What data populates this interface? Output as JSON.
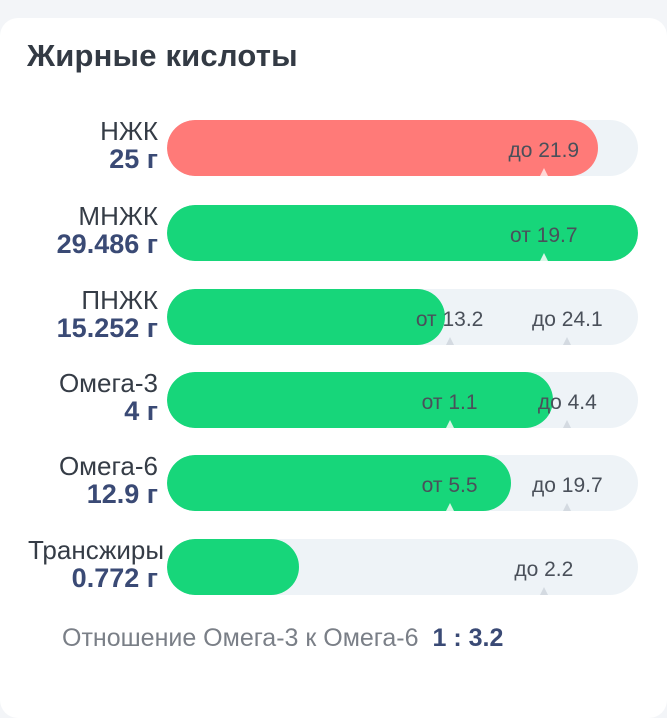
{
  "title": "Жирные кислоты",
  "rows": [
    {
      "name": "НЖК",
      "value": "25 г",
      "fill_fraction": 0.915,
      "fill_color": "#ff7a78",
      "markers": [
        {
          "label": "до 21.9",
          "at": 0.8
        }
      ]
    },
    {
      "name": "МНЖК",
      "value": "29.486 г",
      "fill_fraction": 1.0,
      "fill_color": "#17d67a",
      "markers": [
        {
          "label": "от 19.7",
          "at": 0.8
        }
      ]
    },
    {
      "name": "ПНЖК",
      "value": "15.252 г",
      "fill_fraction": 0.59,
      "fill_color": "#17d67a",
      "markers": [
        {
          "label": "от 13.2",
          "at": 0.6
        },
        {
          "label": "до 24.1",
          "at": 0.85
        }
      ]
    },
    {
      "name": "Омега-3",
      "value": "4 г",
      "fill_fraction": 0.82,
      "fill_color": "#17d67a",
      "markers": [
        {
          "label": "от 1.1",
          "at": 0.6
        },
        {
          "label": "до 4.4",
          "at": 0.85
        }
      ]
    },
    {
      "name": "Омега-6",
      "value": "12.9 г",
      "fill_fraction": 0.73,
      "fill_color": "#17d67a",
      "markers": [
        {
          "label": "от 5.5",
          "at": 0.6
        },
        {
          "label": "до 19.7",
          "at": 0.85
        }
      ]
    },
    {
      "name": "Трансжиры",
      "value": "0.772 г",
      "fill_fraction": 0.28,
      "fill_color": "#17d67a",
      "markers": [
        {
          "label": "до 2.2",
          "at": 0.8
        }
      ]
    }
  ],
  "ratio": {
    "label": "Отношение Омега-3 к Омега-6",
    "value": "1 : 3.2"
  }
}
